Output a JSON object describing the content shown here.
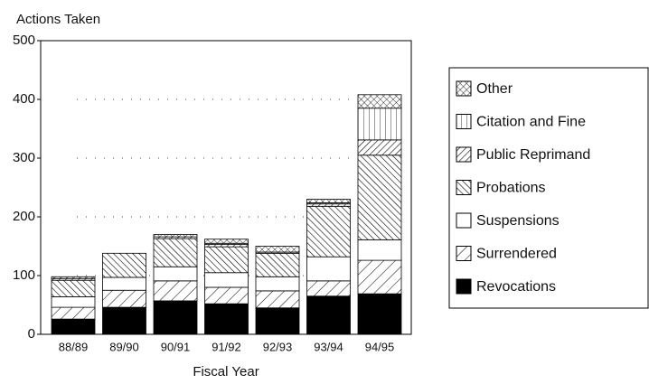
{
  "chart_data": {
    "type": "stacked_bar",
    "title": "Actions Taken",
    "x_label": "Fiscal Year",
    "categories": [
      "88/89",
      "89/90",
      "90/91",
      "91/92",
      "92/93",
      "93/94",
      "94/95"
    ],
    "series": [
      {
        "name": "Revocations",
        "values": [
          26,
          46,
          57,
          52,
          45,
          65,
          69
        ]
      },
      {
        "name": "Surrendered",
        "values": [
          20,
          29,
          34,
          28,
          29,
          26,
          57
        ]
      },
      {
        "name": "Suspensions",
        "values": [
          18,
          22,
          24,
          25,
          24,
          41,
          35
        ]
      },
      {
        "name": "Probations",
        "values": [
          28,
          41,
          48,
          44,
          40,
          86,
          144
        ]
      },
      {
        "name": "Public Reprimand",
        "values": [
          3,
          0,
          3,
          4,
          2,
          4,
          26
        ]
      },
      {
        "name": "Citation and Fine",
        "values": [
          0,
          0,
          0,
          2,
          0,
          2,
          54
        ]
      },
      {
        "name": "Other",
        "values": [
          3,
          0,
          4,
          7,
          10,
          6,
          23
        ]
      }
    ],
    "ylim": [
      0,
      500
    ],
    "yticks": [
      0,
      100,
      200,
      300,
      400,
      500
    ],
    "grid": true
  }
}
